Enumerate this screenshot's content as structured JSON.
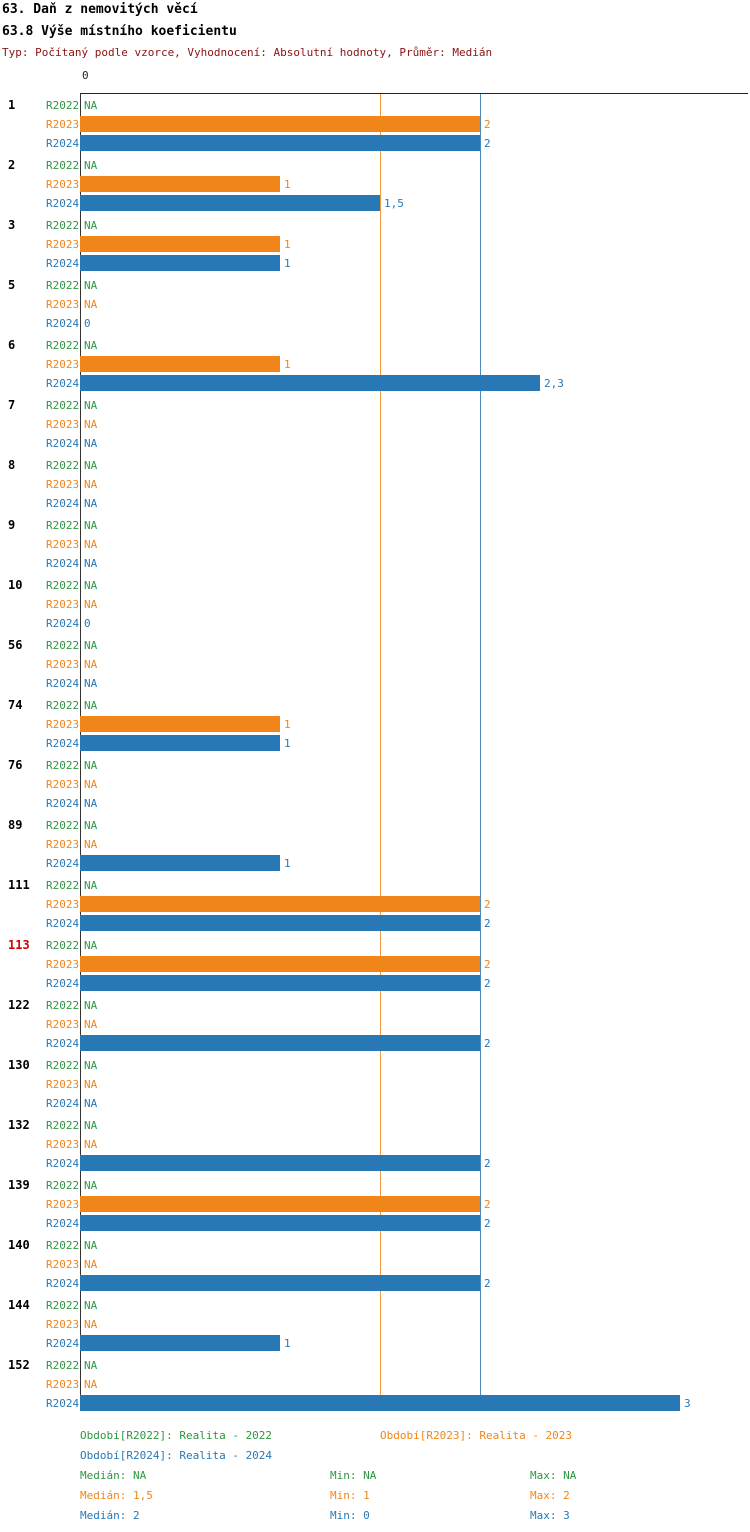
{
  "header": {
    "title": "63. Daň z nemovitých věcí",
    "subtitle": "63.8 Výše místního koeficientu",
    "meta": "Typ: Počítaný podle vzorce, Vyhodnocení: Absolutní hodnoty, Průměr: Medián"
  },
  "colors": {
    "meta_text": "#8b1212",
    "highlight_id": "#d40000"
  },
  "chart_data": {
    "type": "bar",
    "orientation": "horizontal",
    "axis": {
      "origin_label": "0",
      "xlim": [
        0,
        3.35
      ]
    },
    "series_colors": {
      "R2022": "#2e9642",
      "R2023": "#f0851a",
      "R2024": "#2878b5"
    },
    "highlight_color": "#d40000",
    "gridlines": [
      {
        "series": "R2023",
        "value": 1.5
      },
      {
        "series": "R2024",
        "value": 2
      }
    ],
    "groups": [
      {
        "id": "1",
        "rows": [
          {
            "series": "R2022",
            "value": null,
            "label": "NA"
          },
          {
            "series": "R2023",
            "value": 2,
            "label": "2"
          },
          {
            "series": "R2024",
            "value": 2,
            "label": "2"
          }
        ]
      },
      {
        "id": "2",
        "rows": [
          {
            "series": "R2022",
            "value": null,
            "label": "NA"
          },
          {
            "series": "R2023",
            "value": 1,
            "label": "1"
          },
          {
            "series": "R2024",
            "value": 1.5,
            "label": "1,5"
          }
        ]
      },
      {
        "id": "3",
        "rows": [
          {
            "series": "R2022",
            "value": null,
            "label": "NA"
          },
          {
            "series": "R2023",
            "value": 1,
            "label": "1"
          },
          {
            "series": "R2024",
            "value": 1,
            "label": "1"
          }
        ]
      },
      {
        "id": "5",
        "rows": [
          {
            "series": "R2022",
            "value": null,
            "label": "NA"
          },
          {
            "series": "R2023",
            "value": null,
            "label": "NA"
          },
          {
            "series": "R2024",
            "value": 0,
            "label": "0"
          }
        ]
      },
      {
        "id": "6",
        "rows": [
          {
            "series": "R2022",
            "value": null,
            "label": "NA"
          },
          {
            "series": "R2023",
            "value": 1,
            "label": "1"
          },
          {
            "series": "R2024",
            "value": 2.3,
            "label": "2,3"
          }
        ]
      },
      {
        "id": "7",
        "rows": [
          {
            "series": "R2022",
            "value": null,
            "label": "NA"
          },
          {
            "series": "R2023",
            "value": null,
            "label": "NA"
          },
          {
            "series": "R2024",
            "value": null,
            "label": "NA"
          }
        ]
      },
      {
        "id": "8",
        "rows": [
          {
            "series": "R2022",
            "value": null,
            "label": "NA"
          },
          {
            "series": "R2023",
            "value": null,
            "label": "NA"
          },
          {
            "series": "R2024",
            "value": null,
            "label": "NA"
          }
        ]
      },
      {
        "id": "9",
        "rows": [
          {
            "series": "R2022",
            "value": null,
            "label": "NA"
          },
          {
            "series": "R2023",
            "value": null,
            "label": "NA"
          },
          {
            "series": "R2024",
            "value": null,
            "label": "NA"
          }
        ]
      },
      {
        "id": "10",
        "rows": [
          {
            "series": "R2022",
            "value": null,
            "label": "NA"
          },
          {
            "series": "R2023",
            "value": null,
            "label": "NA"
          },
          {
            "series": "R2024",
            "value": 0,
            "label": "0"
          }
        ]
      },
      {
        "id": "56",
        "rows": [
          {
            "series": "R2022",
            "value": null,
            "label": "NA"
          },
          {
            "series": "R2023",
            "value": null,
            "label": "NA"
          },
          {
            "series": "R2024",
            "value": null,
            "label": "NA"
          }
        ]
      },
      {
        "id": "74",
        "rows": [
          {
            "series": "R2022",
            "value": null,
            "label": "NA"
          },
          {
            "series": "R2023",
            "value": 1,
            "label": "1"
          },
          {
            "series": "R2024",
            "value": 1,
            "label": "1"
          }
        ]
      },
      {
        "id": "76",
        "rows": [
          {
            "series": "R2022",
            "value": null,
            "label": "NA"
          },
          {
            "series": "R2023",
            "value": null,
            "label": "NA"
          },
          {
            "series": "R2024",
            "value": null,
            "label": "NA"
          }
        ]
      },
      {
        "id": "89",
        "rows": [
          {
            "series": "R2022",
            "value": null,
            "label": "NA"
          },
          {
            "series": "R2023",
            "value": null,
            "label": "NA"
          },
          {
            "series": "R2024",
            "value": 1,
            "label": "1"
          }
        ]
      },
      {
        "id": "111",
        "rows": [
          {
            "series": "R2022",
            "value": null,
            "label": "NA"
          },
          {
            "series": "R2023",
            "value": 2,
            "label": "2"
          },
          {
            "series": "R2024",
            "value": 2,
            "label": "2"
          }
        ]
      },
      {
        "id": "113",
        "highlight": true,
        "rows": [
          {
            "series": "R2022",
            "value": null,
            "label": "NA"
          },
          {
            "series": "R2023",
            "value": 2,
            "label": "2"
          },
          {
            "series": "R2024",
            "value": 2,
            "label": "2"
          }
        ]
      },
      {
        "id": "122",
        "rows": [
          {
            "series": "R2022",
            "value": null,
            "label": "NA"
          },
          {
            "series": "R2023",
            "value": null,
            "label": "NA"
          },
          {
            "series": "R2024",
            "value": 2,
            "label": "2"
          }
        ]
      },
      {
        "id": "130",
        "rows": [
          {
            "series": "R2022",
            "value": null,
            "label": "NA"
          },
          {
            "series": "R2023",
            "value": null,
            "label": "NA"
          },
          {
            "series": "R2024",
            "value": null,
            "label": "NA"
          }
        ]
      },
      {
        "id": "132",
        "rows": [
          {
            "series": "R2022",
            "value": null,
            "label": "NA"
          },
          {
            "series": "R2023",
            "value": null,
            "label": "NA"
          },
          {
            "series": "R2024",
            "value": 2,
            "label": "2"
          }
        ]
      },
      {
        "id": "139",
        "rows": [
          {
            "series": "R2022",
            "value": null,
            "label": "NA"
          },
          {
            "series": "R2023",
            "value": 2,
            "label": "2"
          },
          {
            "series": "R2024",
            "value": 2,
            "label": "2"
          }
        ]
      },
      {
        "id": "140",
        "rows": [
          {
            "series": "R2022",
            "value": null,
            "label": "NA"
          },
          {
            "series": "R2023",
            "value": null,
            "label": "NA"
          },
          {
            "series": "R2024",
            "value": 2,
            "label": "2"
          }
        ]
      },
      {
        "id": "144",
        "rows": [
          {
            "series": "R2022",
            "value": null,
            "label": "NA"
          },
          {
            "series": "R2023",
            "value": null,
            "label": "NA"
          },
          {
            "series": "R2024",
            "value": 1,
            "label": "1"
          }
        ]
      },
      {
        "id": "152",
        "rows": [
          {
            "series": "R2022",
            "value": null,
            "label": "NA"
          },
          {
            "series": "R2023",
            "value": null,
            "label": "NA"
          },
          {
            "series": "R2024",
            "value": 3,
            "label": "3"
          }
        ]
      }
    ]
  },
  "footer": {
    "legend_r2022": "Období[R2022]: Realita - 2022",
    "legend_r2023": "Období[R2023]: Realita - 2023",
    "legend_r2024": "Období[R2024]: Realita - 2024",
    "stats": {
      "r2022": {
        "median": "Medián: NA",
        "min": "Min: NA",
        "max": "Max: NA"
      },
      "r2023": {
        "median": "Medián: 1,5",
        "min": "Min: 1",
        "max": "Max: 2"
      },
      "r2024": {
        "median": "Medián: 2",
        "min": "Min: 0",
        "max": "Max: 3"
      }
    }
  }
}
